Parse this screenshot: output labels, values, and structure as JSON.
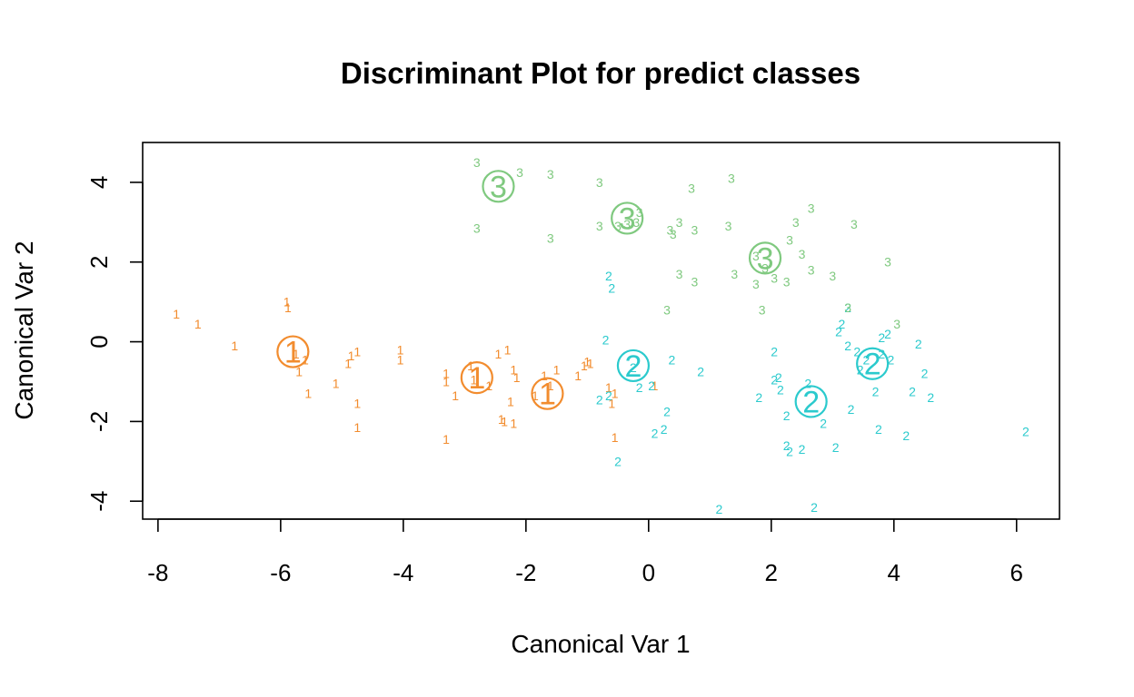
{
  "chart_data": {
    "type": "scatter",
    "title": "Discriminant Plot for predict classes",
    "xlabel": "Canonical Var 1",
    "ylabel": "Canonical Var 2",
    "xlim": [
      -8.25,
      6.7
    ],
    "ylim": [
      -4.45,
      5.0
    ],
    "xticks": [
      -8,
      -6,
      -4,
      -2,
      0,
      2,
      4,
      6
    ],
    "yticks": [
      -4,
      -2,
      0,
      2,
      4
    ],
    "grid": false,
    "legend": "none",
    "series": [
      {
        "label": "1",
        "color": "#F28C2E",
        "points": [
          [
            -7.7,
            0.7
          ],
          [
            -7.35,
            0.45
          ],
          [
            -6.75,
            -0.1
          ],
          [
            -5.9,
            1.0
          ],
          [
            -5.88,
            0.85
          ],
          [
            -5.75,
            -0.3
          ],
          [
            -5.7,
            -0.75
          ],
          [
            -5.6,
            -0.45
          ],
          [
            -5.55,
            -1.3
          ],
          [
            -5.1,
            -1.05
          ],
          [
            -4.9,
            -0.55
          ],
          [
            -4.85,
            -0.35
          ],
          [
            -4.75,
            -0.25
          ],
          [
            -4.75,
            -1.55
          ],
          [
            -4.75,
            -2.15
          ],
          [
            -4.05,
            -0.2
          ],
          [
            -4.05,
            -0.45
          ],
          [
            -3.3,
            -0.8
          ],
          [
            -3.3,
            -1.0
          ],
          [
            -3.3,
            -2.45
          ],
          [
            -3.15,
            -1.35
          ],
          [
            -2.9,
            -0.6
          ],
          [
            -2.85,
            -0.95
          ],
          [
            -2.6,
            -1.1
          ],
          [
            -2.45,
            -0.3
          ],
          [
            -2.4,
            -1.95
          ],
          [
            -2.35,
            -2.0
          ],
          [
            -2.3,
            -0.2
          ],
          [
            -2.25,
            -1.5
          ],
          [
            -2.2,
            -0.7
          ],
          [
            -2.2,
            -2.05
          ],
          [
            -2.15,
            -0.9
          ],
          [
            -1.85,
            -1.35
          ],
          [
            -1.7,
            -0.85
          ],
          [
            -1.6,
            -1.1
          ],
          [
            -1.15,
            -0.85
          ],
          [
            -1.05,
            -0.6
          ],
          [
            -1.0,
            -0.5
          ],
          [
            -0.95,
            -0.55
          ],
          [
            -0.65,
            -1.15
          ],
          [
            -0.6,
            -1.55
          ],
          [
            -0.55,
            -1.3
          ],
          [
            -0.55,
            -2.4
          ],
          [
            0.1,
            -1.1
          ],
          [
            -1.5,
            -0.7
          ]
        ]
      },
      {
        "label": "2",
        "color": "#2BCACD",
        "points": [
          [
            -0.65,
            1.65
          ],
          [
            -0.6,
            1.35
          ],
          [
            -0.7,
            0.05
          ],
          [
            -0.8,
            -1.45
          ],
          [
            -0.65,
            -1.35
          ],
          [
            -0.5,
            -3.0
          ],
          [
            -0.25,
            -0.65
          ],
          [
            -0.15,
            -1.15
          ],
          [
            0.05,
            -1.1
          ],
          [
            0.1,
            -2.3
          ],
          [
            0.25,
            -2.2
          ],
          [
            0.3,
            -1.75
          ],
          [
            0.38,
            -0.45
          ],
          [
            0.85,
            -0.75
          ],
          [
            1.15,
            -4.2
          ],
          [
            1.8,
            -1.4
          ],
          [
            2.05,
            -0.25
          ],
          [
            2.05,
            -0.95
          ],
          [
            2.12,
            -0.9
          ],
          [
            2.15,
            -1.2
          ],
          [
            2.25,
            -1.85
          ],
          [
            2.25,
            -2.6
          ],
          [
            2.3,
            -2.75
          ],
          [
            2.5,
            -2.7
          ],
          [
            2.6,
            -1.05
          ],
          [
            2.7,
            -4.15
          ],
          [
            2.85,
            -2.05
          ],
          [
            3.05,
            -2.65
          ],
          [
            3.3,
            -1.7
          ],
          [
            3.1,
            0.25
          ],
          [
            3.15,
            0.45
          ],
          [
            3.25,
            0.85
          ],
          [
            3.25,
            -0.1
          ],
          [
            3.4,
            -0.25
          ],
          [
            3.45,
            -0.7
          ],
          [
            3.55,
            -0.45
          ],
          [
            3.7,
            -1.25
          ],
          [
            3.75,
            -2.2
          ],
          [
            3.8,
            -0.3
          ],
          [
            3.8,
            0.1
          ],
          [
            3.9,
            0.2
          ],
          [
            3.95,
            -0.45
          ],
          [
            4.2,
            -2.35
          ],
          [
            4.3,
            -1.25
          ],
          [
            4.4,
            -0.05
          ],
          [
            4.5,
            -0.8
          ],
          [
            4.6,
            -1.4
          ],
          [
            6.15,
            -2.25
          ]
        ]
      },
      {
        "label": "3",
        "color": "#7FC97F",
        "points": [
          [
            -2.8,
            4.5
          ],
          [
            -2.8,
            2.85
          ],
          [
            -2.1,
            4.25
          ],
          [
            -1.6,
            4.2
          ],
          [
            -1.6,
            2.6
          ],
          [
            -0.8,
            4.0
          ],
          [
            -0.8,
            2.9
          ],
          [
            -0.5,
            2.9
          ],
          [
            -0.35,
            2.95
          ],
          [
            -0.2,
            3.0
          ],
          [
            -0.15,
            3.25
          ],
          [
            0.35,
            2.8
          ],
          [
            0.4,
            2.7
          ],
          [
            0.5,
            3.0
          ],
          [
            0.5,
            1.7
          ],
          [
            0.7,
            3.85
          ],
          [
            0.75,
            1.5
          ],
          [
            0.75,
            2.8
          ],
          [
            0.3,
            0.8
          ],
          [
            1.3,
            2.9
          ],
          [
            1.35,
            4.1
          ],
          [
            1.4,
            1.7
          ],
          [
            1.75,
            2.15
          ],
          [
            1.75,
            1.45
          ],
          [
            1.85,
            0.8
          ],
          [
            1.9,
            1.85
          ],
          [
            2.05,
            1.6
          ],
          [
            2.25,
            1.5
          ],
          [
            2.3,
            2.55
          ],
          [
            2.4,
            3.0
          ],
          [
            2.5,
            2.2
          ],
          [
            2.65,
            1.8
          ],
          [
            2.65,
            3.35
          ],
          [
            3.0,
            1.65
          ],
          [
            3.25,
            0.85
          ],
          [
            3.35,
            2.95
          ],
          [
            3.9,
            2.0
          ],
          [
            4.05,
            0.45
          ]
        ]
      }
    ],
    "centroids": [
      {
        "label": "1",
        "color": "#F28C2E",
        "points": [
          [
            -5.8,
            -0.25
          ],
          [
            -2.8,
            -0.9
          ],
          [
            -1.65,
            -1.3
          ]
        ]
      },
      {
        "label": "2",
        "color": "#2BCACD",
        "points": [
          [
            -0.25,
            -0.6
          ],
          [
            2.65,
            -1.5
          ],
          [
            3.65,
            -0.55
          ]
        ]
      },
      {
        "label": "3",
        "color": "#7FC97F",
        "points": [
          [
            -2.45,
            3.9
          ],
          [
            -0.35,
            3.1
          ],
          [
            1.9,
            2.1
          ]
        ]
      }
    ]
  }
}
